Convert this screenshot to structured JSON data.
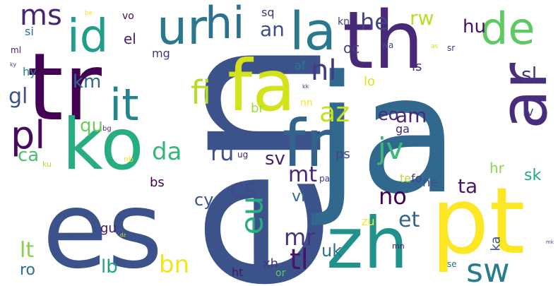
{
  "words": [
    {
      "t": "en",
      "c": "#3b528b",
      "v": true
    },
    {
      "t": "ja",
      "c": "#31688e"
    },
    {
      "t": "es",
      "c": "#3b528b"
    },
    {
      "t": "tr",
      "c": "#440154"
    },
    {
      "t": "th",
      "c": "#482878"
    },
    {
      "t": "pt",
      "c": "#fde725"
    },
    {
      "t": "fa",
      "c": "#d2e21b"
    },
    {
      "t": "zh",
      "c": "#21918c"
    },
    {
      "t": "ko",
      "c": "#26ad81"
    },
    {
      "t": "fr",
      "c": "#33638d"
    },
    {
      "t": "ar",
      "c": "#472d7b",
      "v": true
    },
    {
      "t": "ur",
      "c": "#2a788e"
    },
    {
      "t": "la",
      "c": "#2a788e"
    },
    {
      "t": "hi",
      "c": "#2c728e"
    },
    {
      "t": "id",
      "c": "#1f9e89"
    },
    {
      "t": "de",
      "c": "#5ec962"
    },
    {
      "t": "it",
      "c": "#25858e"
    },
    {
      "t": "pl",
      "c": "#460b5e"
    },
    {
      "t": "fi",
      "c": "#b5de2b"
    },
    {
      "t": "sw",
      "c": "#287c8e"
    },
    {
      "t": "az",
      "c": "#c8e020"
    },
    {
      "t": "nl",
      "c": "#443983"
    },
    {
      "t": "jv",
      "c": "#3aba76"
    },
    {
      "t": "ms",
      "c": "#482475"
    },
    {
      "t": "tl",
      "c": "#481467"
    },
    {
      "t": "da",
      "c": "#35b779"
    },
    {
      "t": "ru",
      "c": "#3b528b"
    },
    {
      "t": "cs",
      "c": "#3e4a89"
    },
    {
      "t": "eu",
      "c": "#29af7f",
      "v": true
    },
    {
      "t": "mr",
      "c": "#46327e"
    },
    {
      "t": "bn",
      "c": "#f1e51d"
    },
    {
      "t": "mt",
      "c": "#482576"
    },
    {
      "t": "sl",
      "c": "#453882"
    },
    {
      "t": "am",
      "c": "#482979"
    },
    {
      "t": "eo",
      "c": "#472a7a"
    },
    {
      "t": "et",
      "c": "#32658e"
    },
    {
      "t": "no",
      "c": "#440154"
    },
    {
      "t": "ta",
      "c": "#481769"
    },
    {
      "t": "an",
      "c": "#3e4c8a"
    },
    {
      "t": "he",
      "c": "#414487"
    },
    {
      "t": "km",
      "c": "#31688e"
    },
    {
      "t": "lt",
      "c": "#84d44b"
    },
    {
      "t": "gl",
      "c": "#3b528b"
    },
    {
      "t": "ca",
      "c": "#4ac16d"
    },
    {
      "t": "qu",
      "c": "#6ccd5a"
    },
    {
      "t": "sv",
      "c": "#481f70"
    },
    {
      "t": "vi",
      "c": "#2e6e8e"
    },
    {
      "t": "uk",
      "c": "#2e6e8e"
    },
    {
      "t": "lb",
      "c": "#1fa187"
    },
    {
      "t": "ro",
      "c": "#2e6f8e"
    },
    {
      "t": "cy",
      "c": "#3a548c"
    },
    {
      "t": "sk",
      "c": "#22a785"
    },
    {
      "t": "hr",
      "c": "#8bd646"
    },
    {
      "t": "hu",
      "c": "#471164"
    },
    {
      "t": "rw",
      "c": "#b8de29"
    },
    {
      "t": "oc",
      "c": "#433e85"
    },
    {
      "t": "el",
      "c": "#482173"
    },
    {
      "t": "br",
      "c": "#a0da39"
    },
    {
      "t": "ga",
      "c": "#482677"
    },
    {
      "t": "lv",
      "c": "#404588"
    },
    {
      "t": "sq",
      "c": "#46307e"
    },
    {
      "t": "bs",
      "c": "#440154"
    },
    {
      "t": "mg",
      "c": "#46337f"
    },
    {
      "t": "is",
      "c": "#472f7d"
    },
    {
      "t": "ps",
      "c": "#3f4889"
    },
    {
      "t": "ne",
      "c": "#3b528b"
    },
    {
      "t": "ka",
      "c": "#3b528b",
      "v": true
    },
    {
      "t": "gu",
      "c": "#471164"
    },
    {
      "t": "te",
      "c": "#b0dd2f"
    },
    {
      "t": "fo",
      "c": "#443b84"
    },
    {
      "t": "zu",
      "c": "#fde725"
    },
    {
      "t": "xh",
      "c": "#453581"
    },
    {
      "t": "ht",
      "c": "#481668"
    },
    {
      "t": "af",
      "c": "#2a788e"
    },
    {
      "t": "lo",
      "c": "#dde318"
    },
    {
      "t": "nn",
      "c": "#fde725"
    },
    {
      "t": "hy",
      "c": "#24868e"
    },
    {
      "t": "si",
      "c": "#2c718e"
    },
    {
      "t": "ml",
      "c": "#481a6c"
    },
    {
      "t": "ky",
      "c": "#424086"
    },
    {
      "t": "be",
      "c": "#efe51c"
    },
    {
      "t": "vo",
      "c": "#46085c"
    },
    {
      "t": "kn",
      "c": "#424186"
    },
    {
      "t": "sr",
      "c": "#453781"
    },
    {
      "t": "wa",
      "c": "#3e4a89"
    },
    {
      "t": "as",
      "c": "#d8e219"
    },
    {
      "t": "kk",
      "c": "#433d84"
    },
    {
      "t": "bg",
      "c": "#46337f"
    },
    {
      "t": "ku",
      "c": "#b5de2b"
    },
    {
      "t": "nb",
      "c": "#fde725"
    },
    {
      "t": "ug",
      "c": "#482374"
    },
    {
      "t": "pa",
      "c": "#46327e"
    },
    {
      "t": "mn",
      "c": "#481769"
    },
    {
      "t": "or",
      "c": "#5ec962"
    },
    {
      "t": "se",
      "c": "#2c728e"
    },
    {
      "t": "dz",
      "c": "#d2e21b"
    },
    {
      "t": "mk",
      "c": "#3b528b"
    }
  ]
}
